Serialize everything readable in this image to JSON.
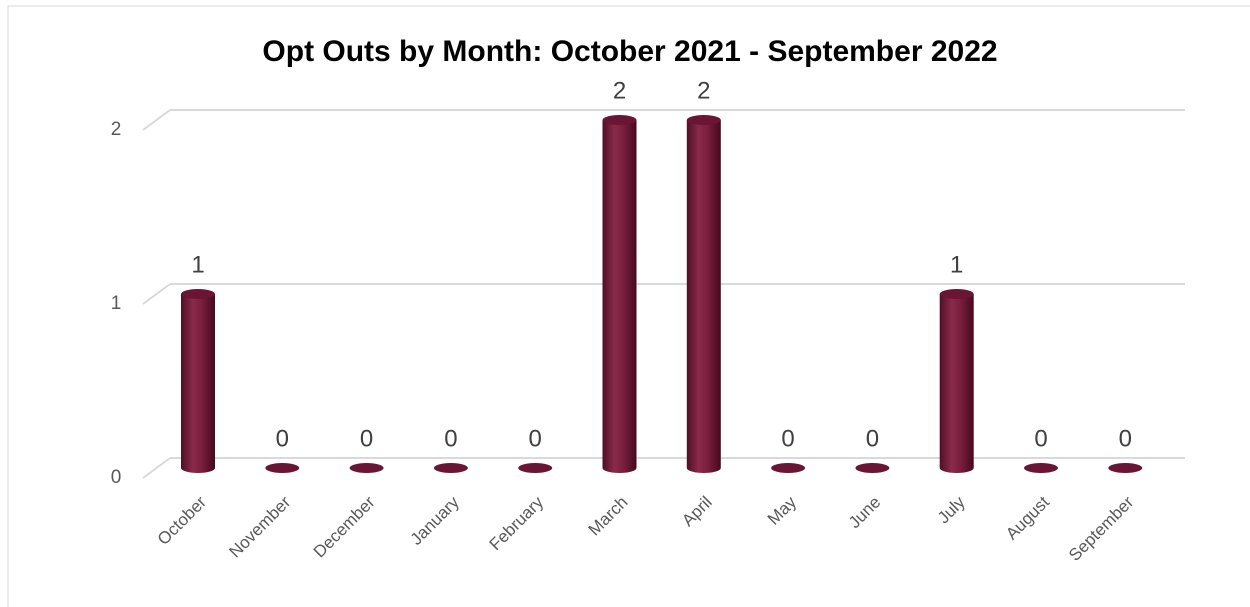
{
  "chart_data": {
    "type": "bar",
    "title": "Opt Outs by Month: October 2021 - September 2022",
    "categories": [
      "October",
      "November",
      "December",
      "January",
      "February",
      "March",
      "April",
      "May",
      "June",
      "July",
      "August",
      "September"
    ],
    "values": [
      1,
      0,
      0,
      0,
      0,
      2,
      2,
      0,
      0,
      1,
      0,
      0
    ],
    "color": "#7a1f3d",
    "ylim": [
      0,
      2
    ],
    "yticks": [
      0,
      1,
      2
    ],
    "grid": true
  }
}
